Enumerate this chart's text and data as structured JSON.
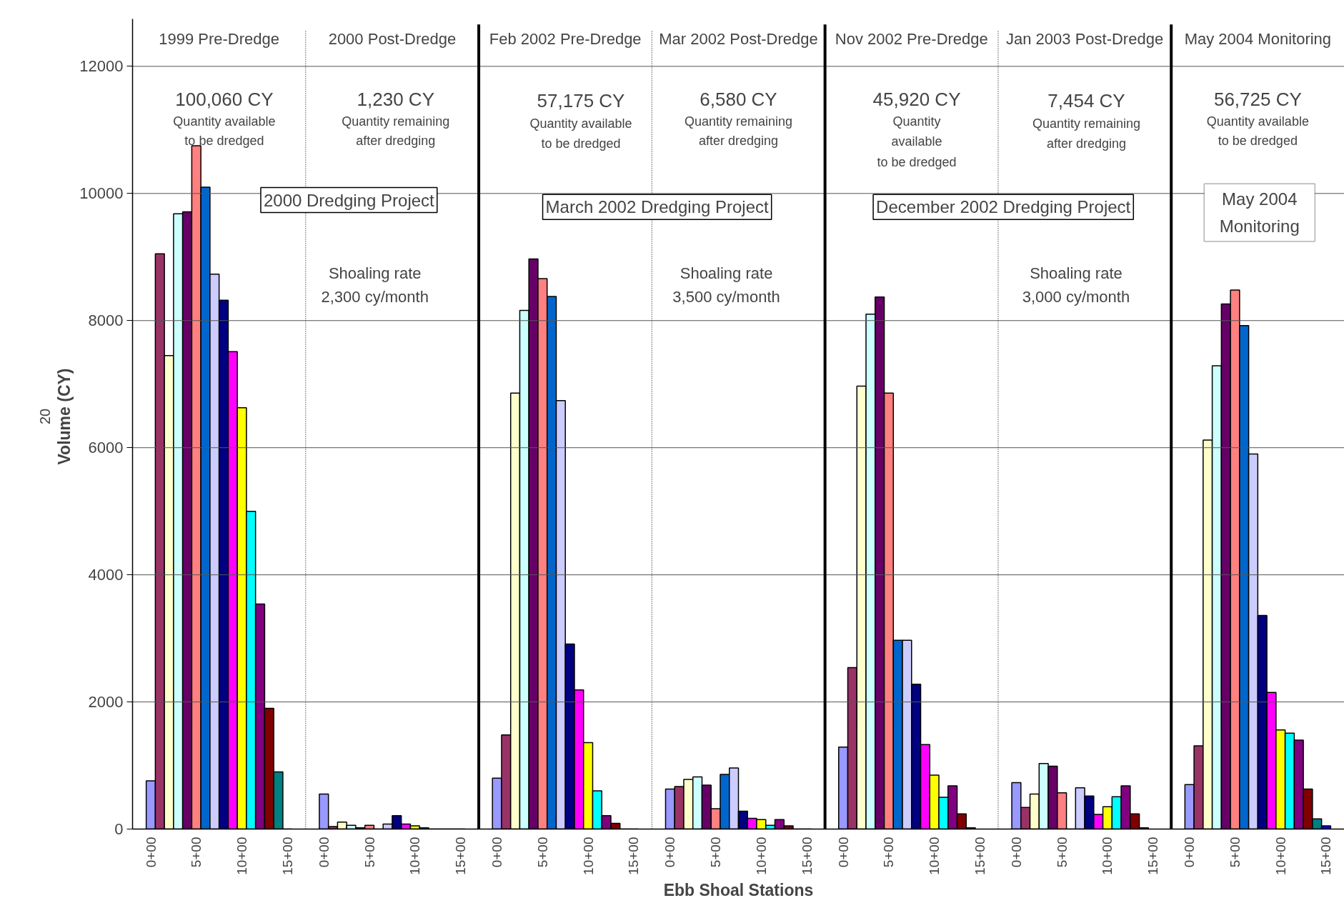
{
  "chart_data": [
    {
      "type": "bar",
      "title": "1999 Pre-Dredge",
      "ylabel": "Volume (CY)",
      "categories": [
        "0+00",
        null,
        null,
        null,
        null,
        "5+00",
        null,
        null,
        null,
        null,
        "10+00",
        null,
        null,
        null,
        null,
        "15+00"
      ],
      "values": [
        760,
        9050,
        7450,
        9680,
        9710,
        10750,
        10100,
        8730,
        8320,
        7510,
        6630,
        5000,
        3540,
        1900,
        900,
        0
      ],
      "colors": [
        "#9999ff",
        "#993366",
        "#ffffcc",
        "#ccffff",
        "#660066",
        "#ff8080",
        "#0066cc",
        "#ccccff",
        "#000080",
        "#ff00ff",
        "#ffff00",
        "#00ffff",
        "#800080",
        "#800000",
        "#008080",
        "#0000ff"
      ],
      "ylim": [
        0,
        12000
      ],
      "yticks": [
        0,
        2000,
        4000,
        6000,
        8000,
        10000,
        12000
      ],
      "grid": "y",
      "annotations": [
        "100,060 CY",
        "Quantity available",
        "to be dredged",
        "20"
      ]
    },
    {
      "type": "bar",
      "title": "2000 Post-Dredge",
      "categories": [
        "0+00",
        null,
        null,
        null,
        null,
        "5+00",
        null,
        null,
        null,
        null,
        "10+00",
        null,
        null,
        null,
        null,
        "15+00"
      ],
      "values": [
        550,
        40,
        110,
        60,
        20,
        60,
        0,
        80,
        210,
        80,
        50,
        20,
        0,
        0,
        0,
        0
      ],
      "colors": [
        "#9999ff",
        "#993366",
        "#ffffcc",
        "#ccffff",
        "#660066",
        "#ff8080",
        "#0066cc",
        "#ccccff",
        "#000080",
        "#ff00ff",
        "#ffff00",
        "#00ffff",
        "#800080",
        "#800000",
        "#008080",
        "#0000ff"
      ],
      "ylim": [
        0,
        12000
      ],
      "yticks": [
        0,
        2000,
        4000,
        6000,
        8000,
        10000,
        12000
      ],
      "grid": "y",
      "tick_labels": "x",
      "annotations": [
        "1,230 CY",
        "Quantity remaining",
        "after dredging",
        "2000 Dredging Project",
        "Shoaling rate",
        "2,300 cy/month"
      ]
    },
    {
      "type": "bar",
      "title": "Feb 2002 Pre-Dredge",
      "categories": [
        "0+00",
        null,
        null,
        null,
        null,
        "5+00",
        null,
        null,
        null,
        null,
        "10+00",
        null,
        null,
        null,
        null,
        "15+00"
      ],
      "values": [
        800,
        1480,
        6860,
        8160,
        8970,
        8660,
        8380,
        6740,
        2910,
        2190,
        1360,
        600,
        210,
        90,
        0,
        0
      ],
      "colors": [
        "#9999ff",
        "#993366",
        "#ffffcc",
        "#ccffff",
        "#660066",
        "#ff8080",
        "#0066cc",
        "#ccccff",
        "#000080",
        "#ff00ff",
        "#ffff00",
        "#00ffff",
        "#800080",
        "#800000",
        "#008080",
        "#0000ff"
      ],
      "ylim": [
        0,
        12000
      ],
      "yticks": [
        0,
        2000,
        4000,
        6000,
        8000,
        10000,
        12000
      ],
      "grid": "y",
      "tick_labels": "x",
      "annotations": [
        "57,175 CY",
        "Quantity available",
        "to be dredged"
      ]
    },
    {
      "type": "bar",
      "title": "Mar 2002 Post-Dredge",
      "xlabel": "Ebb Shoal Stations",
      "categories": [
        "0+00",
        null,
        null,
        null,
        null,
        "5+00",
        null,
        null,
        null,
        null,
        "10+00",
        null,
        null,
        null,
        null,
        "15+00"
      ],
      "values": [
        630,
        670,
        780,
        820,
        690,
        320,
        860,
        960,
        280,
        170,
        150,
        60,
        150,
        50,
        0,
        0
      ],
      "colors": [
        "#9999ff",
        "#993366",
        "#ffffcc",
        "#ccffff",
        "#660066",
        "#ff8080",
        "#0066cc",
        "#ccccff",
        "#000080",
        "#ff00ff",
        "#ffff00",
        "#00ffff",
        "#800080",
        "#800000",
        "#008080",
        "#0000ff"
      ],
      "ylim": [
        0,
        12000
      ],
      "yticks": [
        0,
        2000,
        4000,
        6000,
        8000,
        10000,
        12000
      ],
      "grid": "y",
      "tick_labels": "x",
      "annotations": [
        "6,580 CY",
        "Quantity remaining",
        "after dredging",
        "March 2002 Dredging Project",
        "Shoaling rate",
        "3,500 cy/month"
      ]
    },
    {
      "type": "bar",
      "title": "Nov 2002 Pre-Dredge",
      "categories": [
        "0+00",
        null,
        null,
        null,
        null,
        "5+00",
        null,
        null,
        null,
        null,
        "10+00",
        null,
        null,
        null,
        null,
        "15+00"
      ],
      "values": [
        1290,
        2540,
        6970,
        8100,
        8370,
        6860,
        2970,
        2970,
        2280,
        1330,
        850,
        500,
        680,
        240,
        20,
        null
      ],
      "colors": [
        "#9999ff",
        "#993366",
        "#ffffcc",
        "#ccffff",
        "#660066",
        "#ff8080",
        "#0066cc",
        "#ccccff",
        "#000080",
        "#ff00ff",
        "#ffff00",
        "#00ffff",
        "#800080",
        "#800000",
        "#008080",
        "#0000ff"
      ],
      "ylim": [
        0,
        12000
      ],
      "yticks": [
        0,
        2000,
        4000,
        6000,
        8000,
        10000,
        12000
      ],
      "grid": "y",
      "tick_labels": "x",
      "annotations": [
        "45,920 CY",
        "Quantity",
        "available",
        "to be dredged"
      ]
    },
    {
      "type": "bar",
      "title": "Jan 2003 Post-Dredge",
      "categories": [
        "0+00",
        null,
        null,
        null,
        null,
        "5+00",
        null,
        null,
        null,
        null,
        "10+00",
        null,
        null,
        null,
        null,
        "15+00"
      ],
      "values": [
        730,
        340,
        550,
        1030,
        990,
        570,
        0,
        650,
        520,
        230,
        350,
        510,
        680,
        240,
        20,
        null
      ],
      "colors": [
        "#9999ff",
        "#993366",
        "#ffffcc",
        "#ccffff",
        "#660066",
        "#ff8080",
        "#0066cc",
        "#ccccff",
        "#000080",
        "#ff00ff",
        "#ffff00",
        "#00ffff",
        "#800080",
        "#800000",
        "#008080",
        "#0000ff"
      ],
      "ylim": [
        0,
        12000
      ],
      "yticks": [
        0,
        2000,
        4000,
        6000,
        8000,
        10000,
        12000
      ],
      "grid": "y",
      "tick_labels": "x",
      "annotations": [
        "7,454 CY",
        "Quantity remaining",
        "after dredging",
        "December 2002 Dredging Project",
        "Shoaling rate",
        "3,000 cy/month"
      ]
    },
    {
      "type": "bar",
      "title": "May 2004 Monitoring",
      "categories": [
        "0+00",
        null,
        null,
        null,
        null,
        "5+00",
        null,
        null,
        null,
        null,
        "10+00",
        null,
        null,
        null,
        null,
        "15+00"
      ],
      "values": [
        700,
        1310,
        6120,
        7290,
        8260,
        8480,
        7920,
        5900,
        3360,
        2150,
        1560,
        1510,
        1400,
        630,
        160,
        50
      ],
      "colors": [
        "#9999ff",
        "#993366",
        "#ffffcc",
        "#ccffff",
        "#660066",
        "#ff8080",
        "#0066cc",
        "#ccccff",
        "#000080",
        "#ff00ff",
        "#ffff00",
        "#00ffff",
        "#800080",
        "#800000",
        "#008080",
        "#0000ff"
      ],
      "ylim": [
        0,
        12000
      ],
      "yticks": [
        0,
        2000,
        4000,
        6000,
        8000,
        10000,
        12000
      ],
      "grid": "y",
      "tick_labels": "x",
      "annotations": [
        "56,725 CY",
        "Quantity available",
        "to be dredged",
        "May 2004",
        "Monitoring"
      ]
    }
  ]
}
